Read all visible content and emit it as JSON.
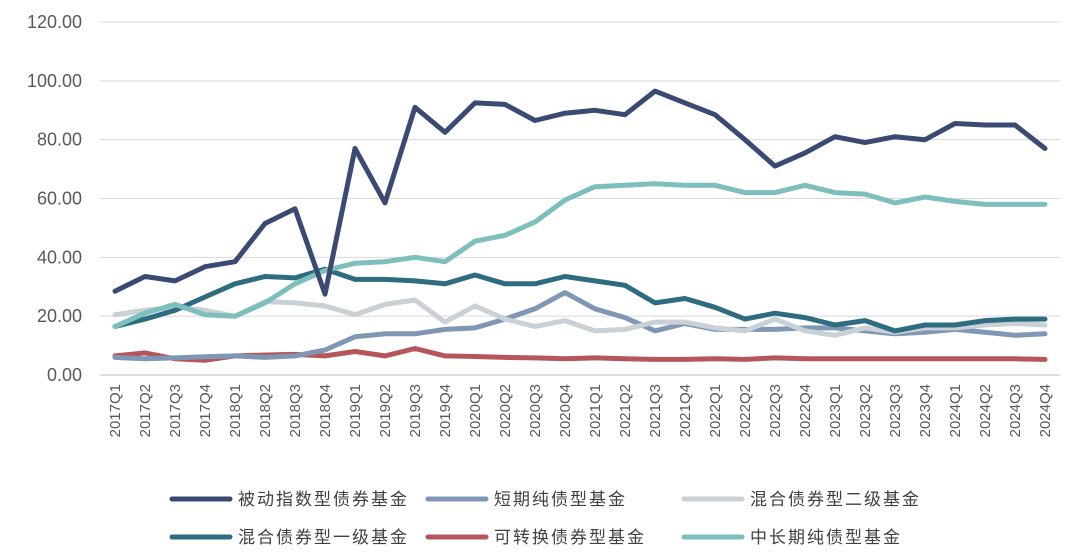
{
  "chart_data": {
    "type": "line",
    "title": "",
    "xlabel": "",
    "ylabel": "",
    "ylim": [
      0,
      120
    ],
    "y_ticks": [
      "0.00",
      "20.00",
      "40.00",
      "60.00",
      "80.00",
      "100.00",
      "120.00"
    ],
    "grid": "horizontal",
    "legend_position": "bottom",
    "categories": [
      "2017Q1",
      "2017Q2",
      "2017Q3",
      "2017Q4",
      "2018Q1",
      "2018Q2",
      "2018Q3",
      "2018Q4",
      "2019Q1",
      "2019Q2",
      "2019Q3",
      "2019Q4",
      "2020Q1",
      "2020Q2",
      "2020Q3",
      "2020Q4",
      "2021Q1",
      "2021Q2",
      "2021Q3",
      "2021Q4",
      "2022Q1",
      "2022Q2",
      "2022Q3",
      "2022Q4",
      "2023Q1",
      "2023Q2",
      "2023Q3",
      "2023Q4",
      "2024Q1",
      "2024Q2",
      "2024Q3",
      "2024Q4"
    ],
    "series": [
      {
        "name": "被动指数型债券基金",
        "color": "#3b4a72",
        "values": [
          28.5,
          33.5,
          32,
          36.8,
          38.5,
          51.5,
          56.5,
          27.5,
          77,
          58.5,
          91,
          82.5,
          92.5,
          92,
          86.5,
          89,
          90,
          88.5,
          96.5,
          92.5,
          88.5,
          80,
          71,
          75.5,
          81,
          79,
          81,
          80,
          85.5,
          85,
          85,
          77
        ]
      },
      {
        "name": "短期纯债型基金",
        "color": "#7f97b4",
        "values": [
          6,
          5.5,
          5.8,
          6.2,
          6.5,
          6,
          6.5,
          8.5,
          13,
          14,
          14,
          15.5,
          16,
          19,
          22.5,
          28,
          22.5,
          19.5,
          15,
          17.5,
          15.5,
          15.5,
          15.5,
          16,
          16,
          15,
          14,
          14.5,
          15.5,
          14.5,
          13.5,
          14
        ]
      },
      {
        "name": "混合债券型二级基金",
        "color": "#c9d0d6",
        "values": [
          20.5,
          22,
          23,
          22,
          20,
          25,
          24.5,
          23.5,
          20.5,
          24,
          25.5,
          18,
          23.5,
          19,
          16.5,
          18.5,
          15,
          15.5,
          18,
          18,
          16,
          15,
          19,
          15,
          13.5,
          16,
          14.5,
          16,
          16,
          17,
          17.5,
          17
        ]
      },
      {
        "name": "混合债券型一级基金",
        "color": "#2e6c80",
        "values": [
          16.5,
          19,
          22,
          26.5,
          31,
          33.5,
          33,
          36,
          32.5,
          32.5,
          32,
          31,
          34,
          31,
          31,
          33.5,
          32,
          30.5,
          24.5,
          26,
          23,
          19,
          21,
          19.5,
          17,
          18.5,
          15,
          17,
          17,
          18.5,
          19,
          19
        ]
      },
      {
        "name": "可转换债券型基金",
        "color": "#b5575a",
        "values": [
          6.5,
          7.5,
          5.5,
          5,
          6.5,
          6.8,
          7,
          6.5,
          8,
          6.5,
          9,
          6.5,
          6.3,
          6,
          5.8,
          5.5,
          5.8,
          5.5,
          5.3,
          5.3,
          5.5,
          5.3,
          5.8,
          5.5,
          5.5,
          5.5,
          5.5,
          5.5,
          5.5,
          5.5,
          5.5,
          5.3
        ]
      },
      {
        "name": "中长期纯债型基金",
        "color": "#7dbfbc",
        "values": [
          16.5,
          21,
          24,
          20.5,
          20,
          24.5,
          31,
          35.5,
          38,
          38.5,
          40,
          38.5,
          45.5,
          47.5,
          52,
          59.5,
          64,
          64.5,
          65,
          64.5,
          64.5,
          62,
          62,
          64.5,
          62,
          61.5,
          58.5,
          60.5,
          59,
          58,
          58,
          58
        ]
      }
    ]
  }
}
